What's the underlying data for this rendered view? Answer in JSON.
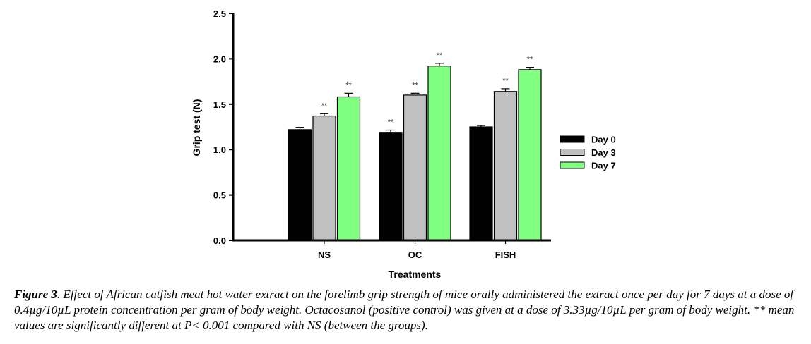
{
  "chart_data": {
    "type": "bar",
    "title": "",
    "xlabel": "Treatments",
    "ylabel": "Grip test (N)",
    "ylim": [
      0,
      2.5
    ],
    "yticks": [
      "0.0",
      "0.5",
      "1.0",
      "1.5",
      "2.0",
      "2.5"
    ],
    "ytick_values": [
      0,
      0.5,
      1.0,
      1.5,
      2.0,
      2.5
    ],
    "categories": [
      "NS",
      "OC",
      "FISH"
    ],
    "series": [
      {
        "name": "Day 0",
        "color": "#000000",
        "values": [
          1.22,
          1.19,
          1.25
        ],
        "errors": [
          0.025,
          0.025,
          0.015
        ],
        "significant": [
          false,
          true,
          false
        ]
      },
      {
        "name": "Day 3",
        "color": "#c0c0c0",
        "values": [
          1.37,
          1.6,
          1.64
        ],
        "errors": [
          0.025,
          0.02,
          0.03
        ],
        "significant": [
          true,
          true,
          true
        ]
      },
      {
        "name": "Day 7",
        "color": "#80ff80",
        "values": [
          1.58,
          1.92,
          1.88
        ],
        "errors": [
          0.04,
          0.03,
          0.025
        ],
        "significant": [
          true,
          true,
          true
        ]
      }
    ],
    "significance_marker": "**",
    "legend_position": "right",
    "grid": false
  },
  "caption": {
    "figure_label": "Figure 3",
    "text": ". Effect of African catfish meat hot water extract on the forelimb grip strength of mice orally administered the extract once per day for 7 days at a dose of 0.4µg/10µL protein concentration per gram of body weight. Octacosanol (positive control) was given at a dose of 3.33µg/10µL per gram of body weight. ** mean values are significantly different at P< 0.001 compared with NS (between the groups)."
  }
}
